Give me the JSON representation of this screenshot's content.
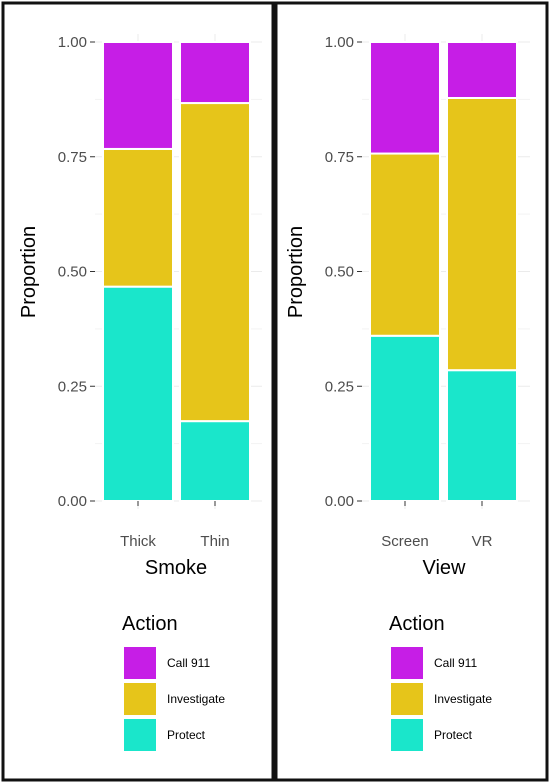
{
  "colors": {
    "Call 911": "#c61ee6",
    "Investigate": "#e6c51a",
    "Protect": "#1ae6cb"
  },
  "legend": {
    "title": "Action",
    "items": [
      "Call 911",
      "Investigate",
      "Protect"
    ]
  },
  "chart_data": [
    {
      "type": "bar",
      "stacked": true,
      "xlabel": "Smoke",
      "ylabel": "Proportion",
      "ylim": [
        0,
        1
      ],
      "yticks": [
        "0.00",
        "0.25",
        "0.50",
        "0.75",
        "1.00"
      ],
      "categories": [
        "Thick",
        "Thin"
      ],
      "series": [
        {
          "name": "Protect",
          "values": [
            0.467,
            0.174
          ]
        },
        {
          "name": "Investigate",
          "values": [
            0.3,
            0.693
          ]
        },
        {
          "name": "Call 911",
          "values": [
            0.233,
            0.133
          ]
        }
      ],
      "grid": true,
      "legend_position": "bottom"
    },
    {
      "type": "bar",
      "stacked": true,
      "xlabel": "View",
      "ylabel": "Proportion",
      "ylim": [
        0,
        1
      ],
      "yticks": [
        "0.00",
        "0.25",
        "0.50",
        "0.75",
        "1.00"
      ],
      "categories": [
        "Screen",
        "VR"
      ],
      "series": [
        {
          "name": "Protect",
          "values": [
            0.36,
            0.285
          ]
        },
        {
          "name": "Investigate",
          "values": [
            0.397,
            0.593
          ]
        },
        {
          "name": "Call 911",
          "values": [
            0.243,
            0.122
          ]
        }
      ],
      "grid": true,
      "legend_position": "bottom"
    }
  ]
}
